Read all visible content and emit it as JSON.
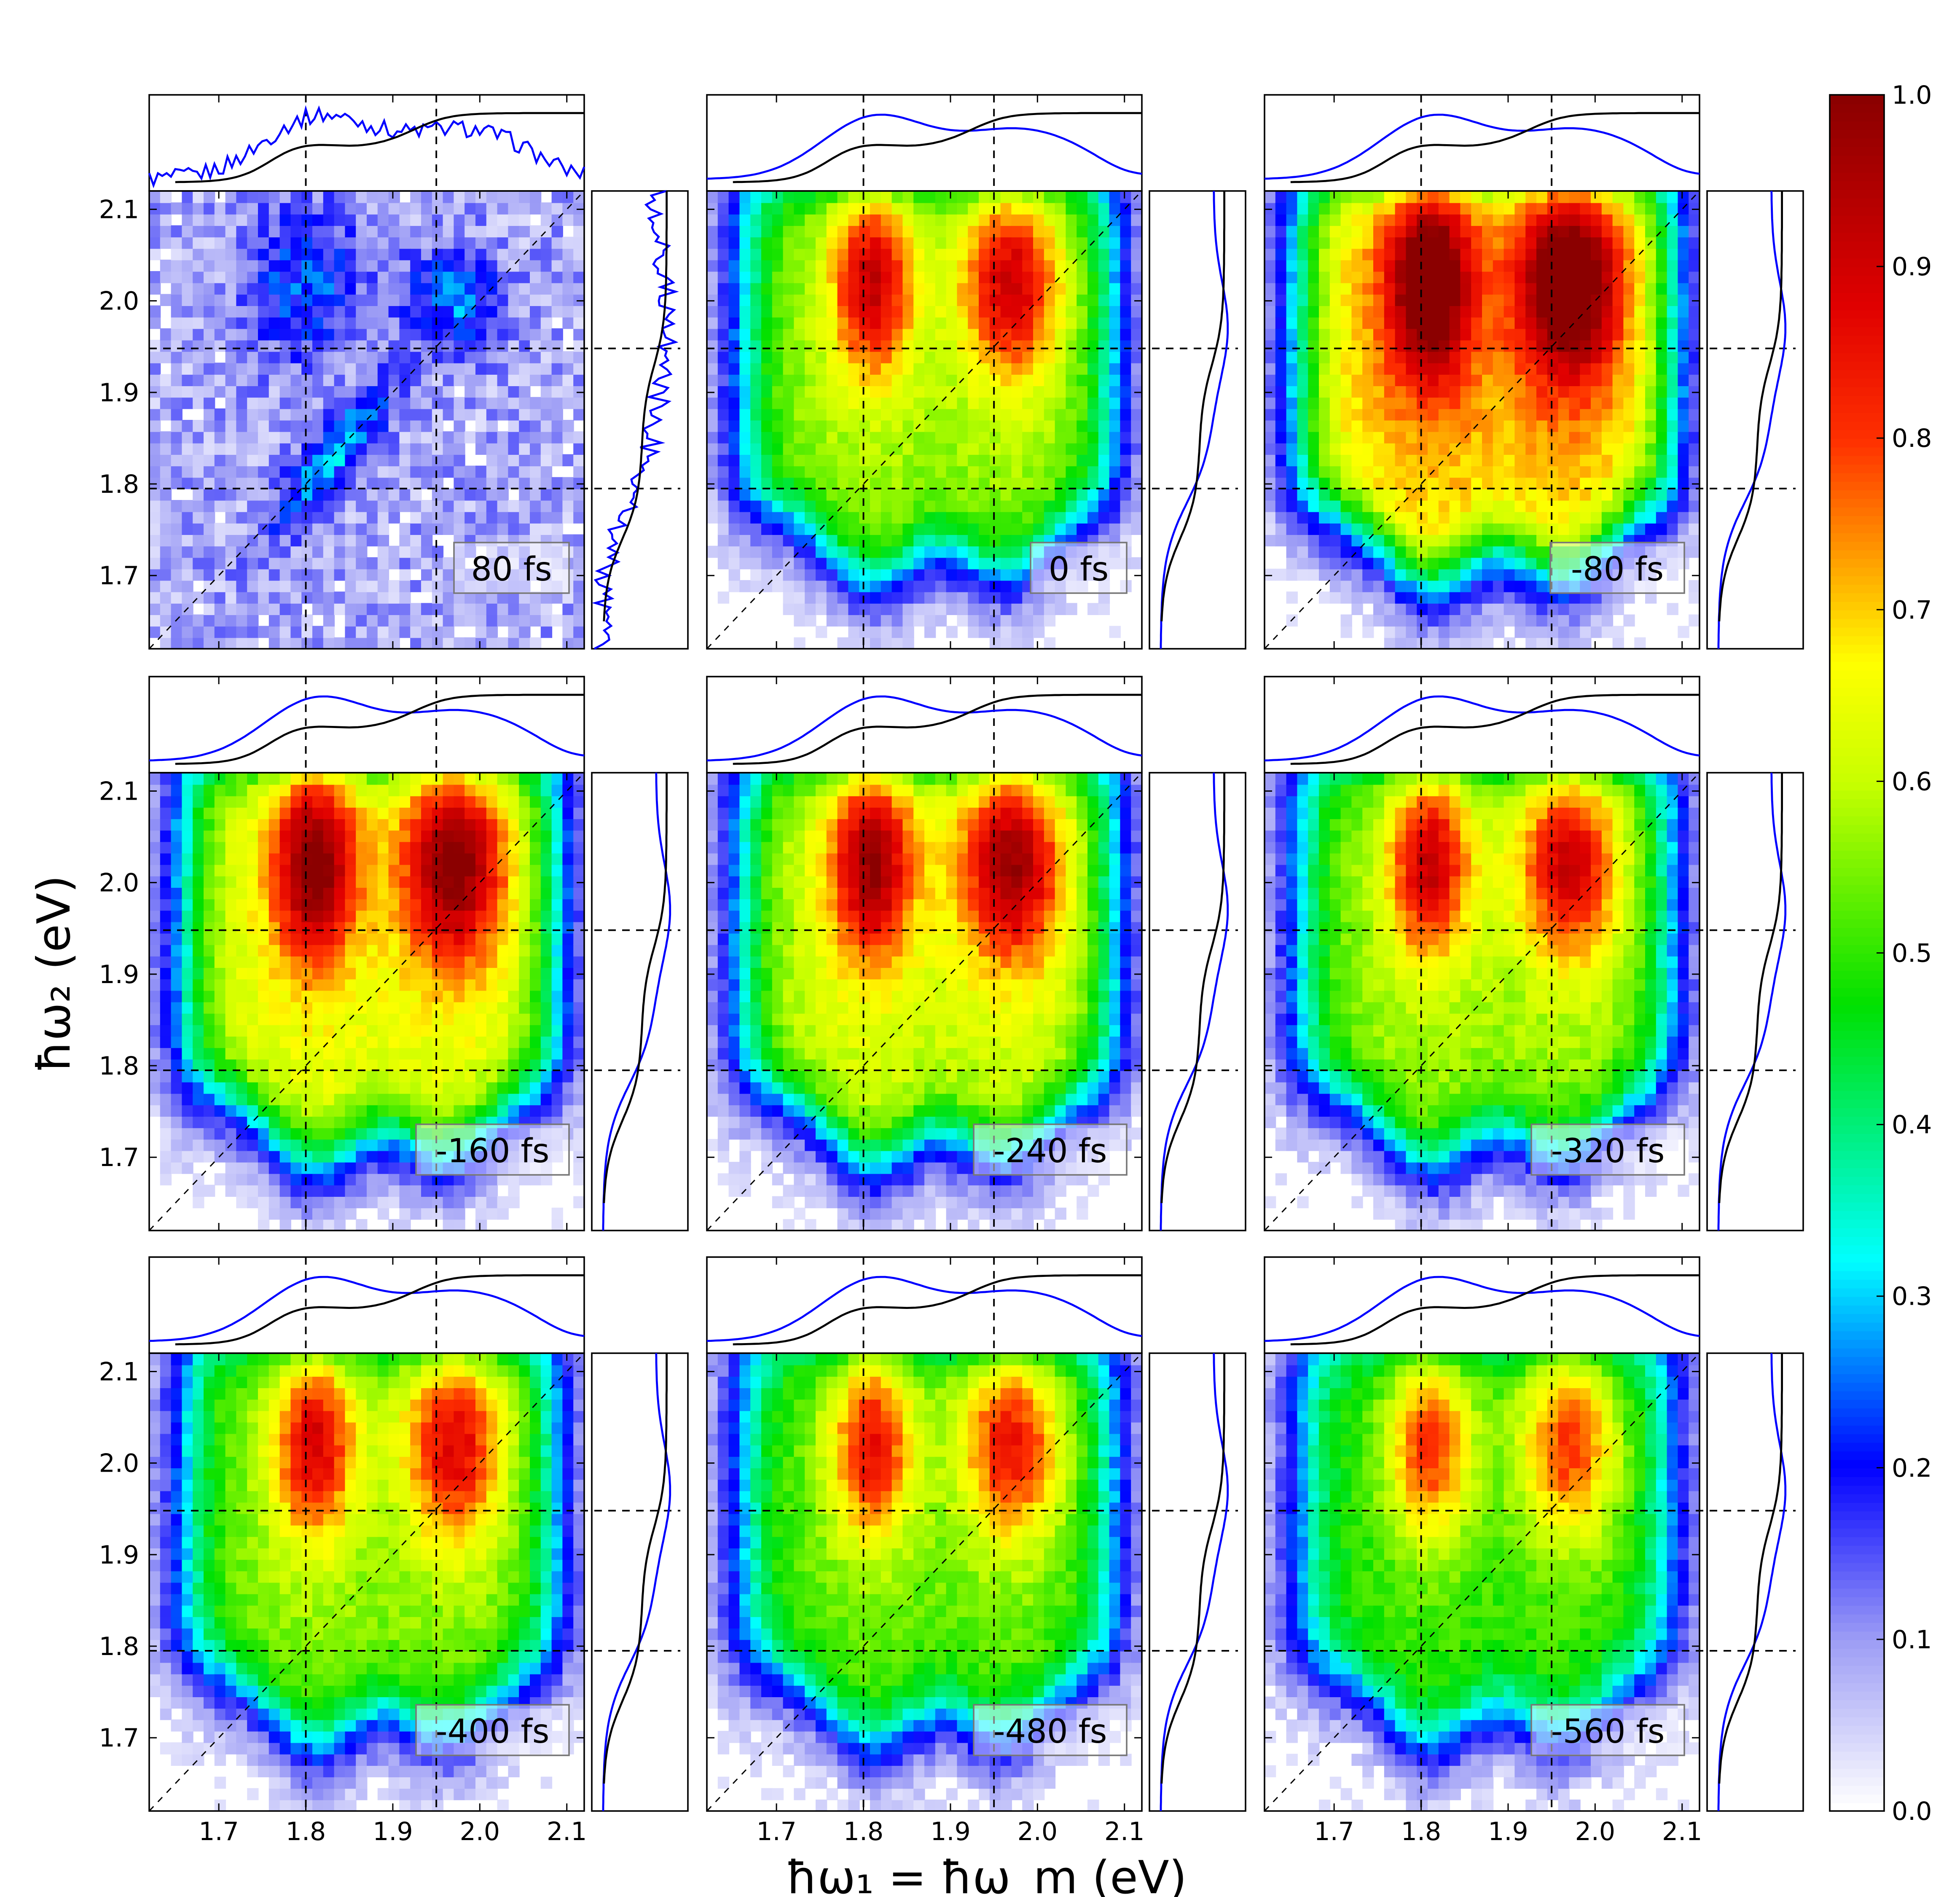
{
  "chart_data": {
    "type": "heatmap",
    "xlabel": "ħω₁ = ħω_m (eV)",
    "ylabel": "ħω₂ (eV)",
    "xlim": [
      1.62,
      2.12
    ],
    "ylim": [
      1.62,
      2.12
    ],
    "x_ticks": [
      "1.7",
      "1.8",
      "1.9",
      "2.0",
      "2.1"
    ],
    "y_ticks": [
      "1.7",
      "1.8",
      "1.9",
      "2.0",
      "2.1"
    ],
    "reference_lines": {
      "vertical": [
        1.8,
        1.95
      ],
      "horizontal": [
        1.795,
        1.948
      ],
      "diagonal": true
    },
    "colorbar": {
      "range": [
        0.0,
        1.0
      ],
      "ticks": [
        "0.0",
        "0.1",
        "0.2",
        "0.3",
        "0.4",
        "0.5",
        "0.6",
        "0.7",
        "0.8",
        "0.9",
        "1.0"
      ],
      "colormap": [
        [
          0,
          "#ffffff"
        ],
        [
          0.1,
          "#9a9af5"
        ],
        [
          0.2,
          "#0000ff"
        ],
        [
          0.32,
          "#00ffff"
        ],
        [
          0.47,
          "#00e000"
        ],
        [
          0.6,
          "#c8ff00"
        ],
        [
          0.67,
          "#ffff00"
        ],
        [
          0.8,
          "#ff3000"
        ],
        [
          0.88,
          "#e00000"
        ],
        [
          1,
          "#8b0000"
        ]
      ]
    },
    "marginal_colors": {
      "measured": "#0000ff",
      "reference": "#000000"
    },
    "grid": false,
    "panels": [
      {
        "delay": "80 fs",
        "peak_value": 0.22
      },
      {
        "delay": "0 fs",
        "peak_value": 0.78
      },
      {
        "delay": "-80 fs",
        "peak_value": 0.97
      },
      {
        "delay": "-160 fs",
        "peak_value": 0.88
      },
      {
        "delay": "-240 fs",
        "peak_value": 0.84
      },
      {
        "delay": "-320 fs",
        "peak_value": 0.78
      },
      {
        "delay": "-400 fs",
        "peak_value": 0.76
      },
      {
        "delay": "-480 fs",
        "peak_value": 0.73
      },
      {
        "delay": "-560 fs",
        "peak_value": 0.69
      }
    ]
  }
}
